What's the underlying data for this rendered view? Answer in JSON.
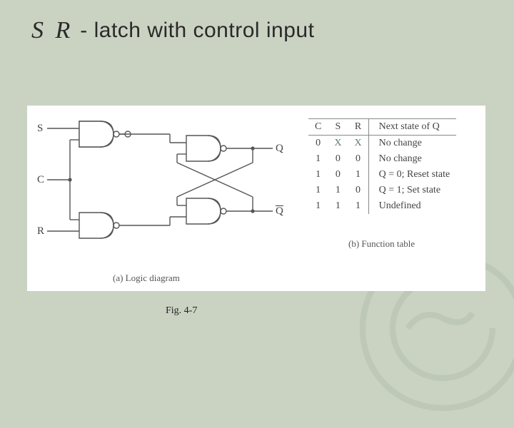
{
  "title": {
    "sr": "S R",
    "rest": "- latch with control input"
  },
  "figure_caption": "Fig. 4-7",
  "diagram": {
    "sub_caption": "(a) Logic diagram",
    "inputs": {
      "S": "S",
      "C": "C",
      "R": "R"
    },
    "outputs": {
      "Q": "Q",
      "Qbar": "Q"
    },
    "wire_color": "#555555",
    "gate_fill": "#ffffff",
    "gate_stroke": "#555555",
    "dot_radius": 2.6,
    "inv_radius": 4
  },
  "table": {
    "sub_caption": "(b) Function table",
    "headers": [
      "C",
      "S",
      "R",
      "Next state of Q"
    ],
    "rows": [
      {
        "c": "0",
        "s": "X",
        "r": "X",
        "state": "No change",
        "hand": true
      },
      {
        "c": "1",
        "s": "0",
        "r": "0",
        "state": "No change",
        "hand": false
      },
      {
        "c": "1",
        "s": "0",
        "r": "1",
        "state": "Q = 0; Reset state",
        "hand": false
      },
      {
        "c": "1",
        "s": "1",
        "r": "0",
        "state": "Q = 1; Set state",
        "hand": false
      },
      {
        "c": "1",
        "s": "1",
        "r": "1",
        "state": "Undefined",
        "hand": false
      }
    ],
    "border_color": "#888888"
  },
  "colors": {
    "page_bg": "#cad3c2",
    "panel_bg": "#ffffff",
    "text": "#2a2a2a"
  }
}
